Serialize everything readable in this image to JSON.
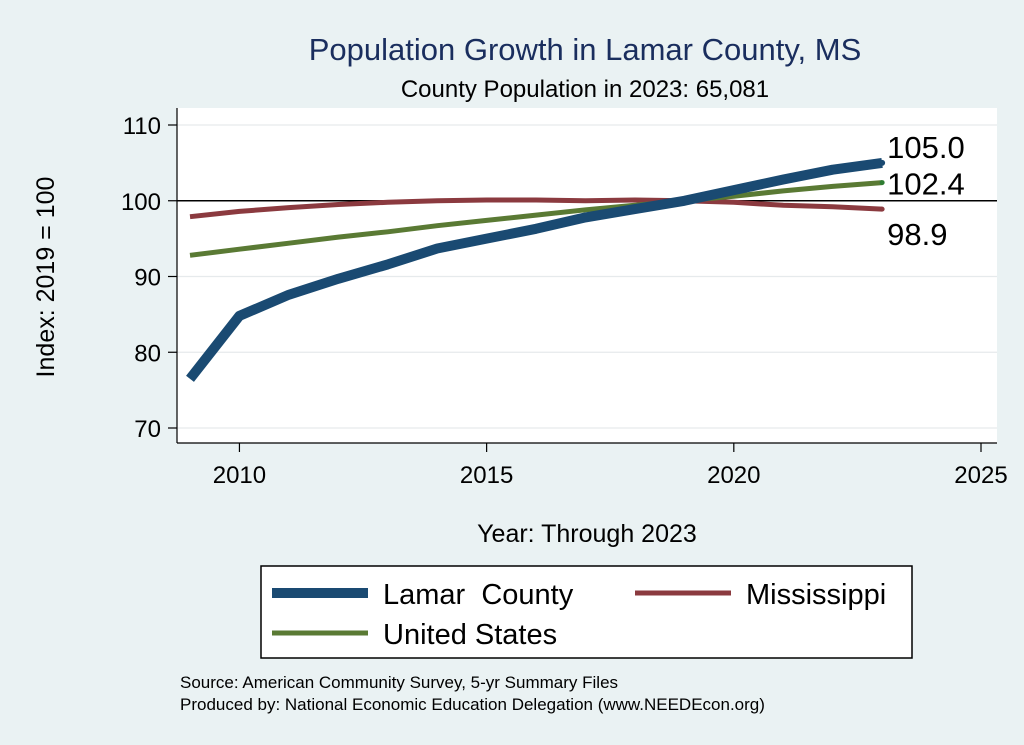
{
  "chart_data": {
    "type": "line",
    "title": "Population Growth in Lamar County, MS",
    "subtitle": "County Population in 2023: 65,081",
    "xlabel": "Year: Through 2023",
    "ylabel": "Index: 2019 = 100",
    "xlim": [
      2009,
      2025
    ],
    "ylim": [
      70,
      110
    ],
    "xticks": [
      2010,
      2015,
      2020,
      2025
    ],
    "yticks": [
      70,
      80,
      90,
      100,
      110
    ],
    "reference_line": 100,
    "grid": true,
    "legend_position": "bottom",
    "series": [
      {
        "name": "Lamar  County",
        "color": "#1a4a72",
        "x": [
          2009,
          2010,
          2011,
          2012,
          2013,
          2014,
          2015,
          2016,
          2017,
          2018,
          2019,
          2020,
          2021,
          2022,
          2023
        ],
        "values": [
          76.5,
          84.8,
          87.6,
          89.7,
          91.6,
          93.7,
          95.0,
          96.3,
          97.8,
          98.9,
          100.0,
          101.4,
          102.8,
          104.1,
          105.0
        ],
        "end_label": "105.0"
      },
      {
        "name": "Mississippi",
        "color": "#8b3a3f",
        "x": [
          2009,
          2010,
          2011,
          2012,
          2013,
          2014,
          2015,
          2016,
          2017,
          2018,
          2019,
          2020,
          2021,
          2022,
          2023
        ],
        "values": [
          97.9,
          98.6,
          99.1,
          99.5,
          99.8,
          100.0,
          100.1,
          100.1,
          100.0,
          100.1,
          100.0,
          99.8,
          99.4,
          99.2,
          98.9
        ],
        "end_label": "98.9"
      },
      {
        "name": "United States",
        "color": "#5a7a34",
        "x": [
          2009,
          2010,
          2011,
          2012,
          2013,
          2014,
          2015,
          2016,
          2017,
          2018,
          2019,
          2020,
          2021,
          2022,
          2023
        ],
        "values": [
          92.8,
          93.6,
          94.4,
          95.2,
          95.9,
          96.7,
          97.4,
          98.1,
          98.8,
          99.4,
          100.0,
          100.6,
          101.3,
          101.9,
          102.4
        ],
        "end_label": "102.4"
      }
    ],
    "notes": [
      "Source: American Community Survey, 5-yr Summary Files",
      "Produced by: National Economic Education Delegation (www.NEEDEcon.org)"
    ]
  }
}
